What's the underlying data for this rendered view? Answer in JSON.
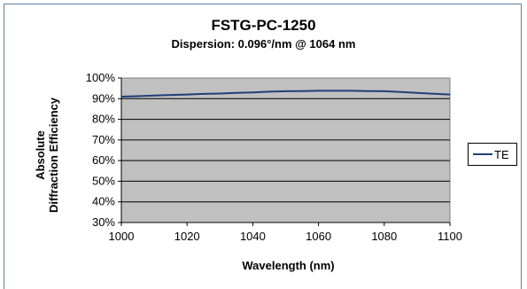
{
  "chart_data": {
    "type": "line",
    "title": "FSTG-PC-1250",
    "subtitle": "Dispersion: 0.096°/nm @ 1064 nm",
    "xlabel": "Wavelength (nm)",
    "ylabel": [
      "Absolute",
      "Diffraction Efficiency"
    ],
    "xlim": [
      1000,
      1100
    ],
    "ylim": [
      30,
      100
    ],
    "xticks": [
      "1000",
      "1020",
      "1040",
      "1060",
      "1080",
      "1100"
    ],
    "yticks": [
      "30%",
      "40%",
      "50%",
      "60%",
      "70%",
      "80%",
      "90%",
      "100%"
    ],
    "grid": "horizontal",
    "legend_position": "right",
    "series": [
      {
        "name": "TE",
        "color": "#1f3f7a",
        "x": [
          1000,
          1005,
          1010,
          1015,
          1020,
          1025,
          1030,
          1035,
          1040,
          1045,
          1050,
          1055,
          1060,
          1065,
          1070,
          1075,
          1080,
          1085,
          1090,
          1095,
          1100
        ],
        "y": [
          91,
          91.2,
          91.5,
          91.8,
          92,
          92.3,
          92.5,
          92.8,
          93,
          93.4,
          93.6,
          93.7,
          93.8,
          93.8,
          93.8,
          93.7,
          93.6,
          93.2,
          92.8,
          92.4,
          92
        ]
      }
    ],
    "plot_background": "#c0c0c0"
  }
}
